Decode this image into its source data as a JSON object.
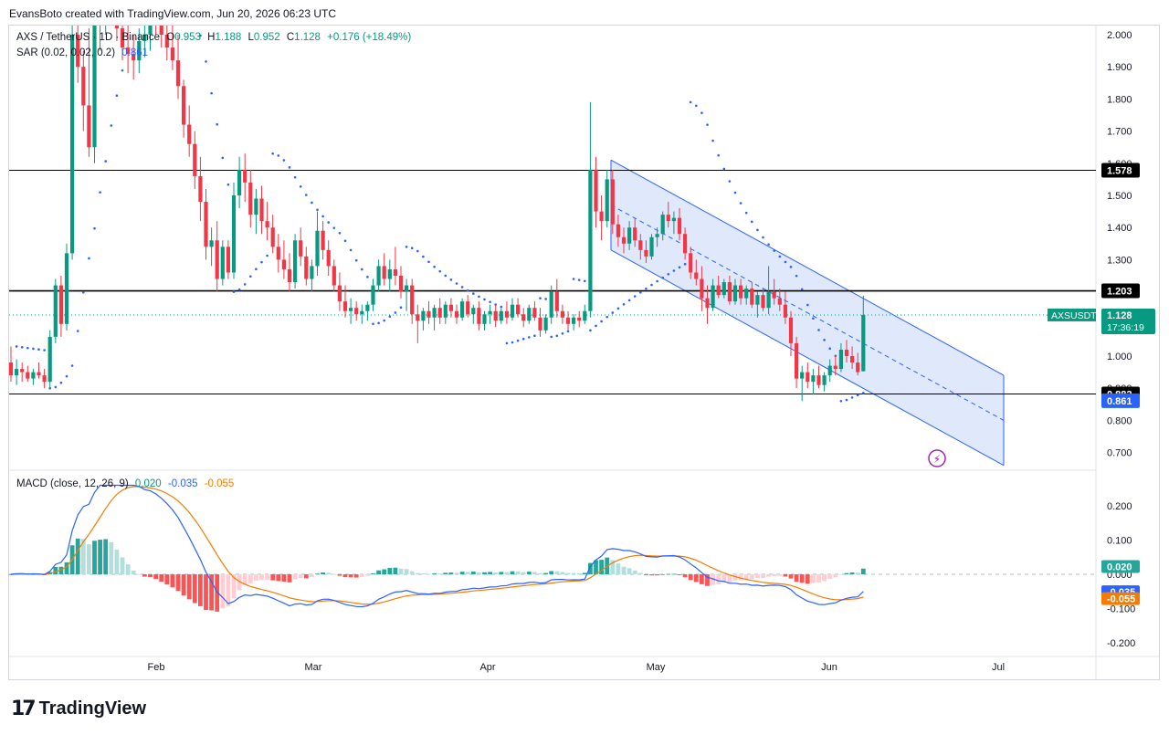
{
  "credit": "EvansBoto created with TradingView.com, Jun 20, 2026 06:23 UTC",
  "legend": {
    "symbol": "AXS / TetherUS · 1D · Binance",
    "open_label": "O",
    "open": "0.953",
    "high_label": "H",
    "high": "1.188",
    "low_label": "L",
    "low": "0.952",
    "close_label": "C",
    "close": "1.128",
    "change": "+0.176 (+18.49%)",
    "sar_label": "SAR (0.02, 0.02, 0.2)",
    "sar_value": "0.861",
    "macd_label": "MACD (close, 12, 26, 9)",
    "macd_hist": "0.020",
    "macd_line": "-0.035",
    "macd_signal": "-0.055"
  },
  "brand": {
    "name": "TradingView",
    "mark": "17"
  },
  "chart_data": {
    "type": "candlestick",
    "symbol": "AXSUSDT",
    "timeframe": "1D",
    "price_axis": {
      "ticks": [
        2.0,
        1.9,
        1.8,
        1.7,
        1.6,
        1.5,
        1.4,
        1.3,
        1.2,
        1.0,
        0.9,
        0.8,
        0.7
      ],
      "range": [
        0.62,
        2.04
      ]
    },
    "time_axis": {
      "labels": [
        "Feb",
        "Mar",
        "Apr",
        "May",
        "Jun",
        "Jul"
      ]
    },
    "current_price": {
      "label": "AXSUSDT",
      "value": "1.128",
      "countdown": "17:36:19"
    },
    "horizontal_levels": [
      {
        "value": 1.578,
        "label": "1.578"
      },
      {
        "value": 1.203,
        "label": "1.203"
      },
      {
        "value": 0.882,
        "label": "0.882"
      }
    ],
    "sar_current_label": "0.861",
    "channel": {
      "upper": [
        [
          "2026-04-24",
          1.61
        ],
        [
          "2026-06-30",
          0.94
        ]
      ],
      "mid": [
        [
          "2026-04-24",
          1.47
        ],
        [
          "2026-06-30",
          0.8
        ]
      ],
      "lower": [
        [
          "2026-04-24",
          1.33
        ],
        [
          "2026-06-30",
          0.66
        ]
      ]
    },
    "candles_ohlc": [
      [
        0.98,
        1.03,
        0.92,
        0.94
      ],
      [
        0.94,
        0.99,
        0.91,
        0.96
      ],
      [
        0.96,
        0.98,
        0.92,
        0.95
      ],
      [
        0.95,
        0.97,
        0.92,
        0.93
      ],
      [
        0.93,
        0.96,
        0.91,
        0.95
      ],
      [
        0.95,
        0.98,
        0.93,
        0.94
      ],
      [
        0.94,
        0.96,
        0.9,
        0.92
      ],
      [
        0.92,
        1.08,
        0.9,
        1.06
      ],
      [
        1.06,
        1.24,
        1.04,
        1.22
      ],
      [
        1.22,
        1.25,
        1.06,
        1.1
      ],
      [
        1.1,
        1.35,
        1.08,
        1.32
      ],
      [
        1.32,
        2.05,
        1.3,
        2.0
      ],
      [
        2.0,
        2.08,
        1.85,
        1.9
      ],
      [
        1.9,
        1.95,
        1.7,
        1.78
      ],
      [
        1.78,
        2.02,
        1.62,
        1.65
      ],
      [
        1.65,
        2.2,
        1.6,
        2.05
      ],
      [
        2.05,
        2.2,
        1.95,
        2.1
      ],
      [
        2.1,
        2.3,
        2.0,
        2.2
      ],
      [
        2.2,
        2.3,
        2.05,
        2.15
      ],
      [
        2.15,
        2.22,
        1.98,
        2.02
      ],
      [
        2.02,
        2.1,
        1.92,
        1.96
      ],
      [
        1.96,
        2.05,
        1.88,
        1.94
      ],
      [
        1.94,
        2.0,
        1.86,
        1.92
      ],
      [
        1.92,
        2.02,
        1.88,
        1.98
      ],
      [
        1.98,
        2.06,
        1.93,
        2.0
      ],
      [
        2.0,
        2.1,
        1.95,
        2.08
      ],
      [
        2.08,
        2.12,
        2.0,
        2.04
      ],
      [
        2.04,
        2.1,
        1.96,
        2.0
      ],
      [
        2.0,
        2.08,
        1.92,
        1.96
      ],
      [
        1.96,
        2.04,
        1.89,
        1.92
      ],
      [
        1.92,
        2.0,
        1.8,
        1.84
      ],
      [
        1.84,
        1.86,
        1.68,
        1.72
      ],
      [
        1.72,
        1.78,
        1.62,
        1.66
      ],
      [
        1.66,
        1.7,
        1.52,
        1.56
      ],
      [
        1.56,
        1.62,
        1.42,
        1.48
      ],
      [
        1.48,
        1.52,
        1.3,
        1.34
      ],
      [
        1.34,
        1.4,
        1.28,
        1.36
      ],
      [
        1.36,
        1.42,
        1.2,
        1.24
      ],
      [
        1.24,
        1.36,
        1.22,
        1.34
      ],
      [
        1.34,
        1.36,
        1.24,
        1.26
      ],
      [
        1.26,
        1.54,
        1.24,
        1.5
      ],
      [
        1.5,
        1.62,
        1.46,
        1.58
      ],
      [
        1.58,
        1.63,
        1.48,
        1.54
      ],
      [
        1.54,
        1.58,
        1.4,
        1.44
      ],
      [
        1.44,
        1.52,
        1.38,
        1.49
      ],
      [
        1.49,
        1.53,
        1.38,
        1.42
      ],
      [
        1.42,
        1.48,
        1.36,
        1.4
      ],
      [
        1.4,
        1.44,
        1.32,
        1.34
      ],
      [
        1.34,
        1.38,
        1.26,
        1.3
      ],
      [
        1.3,
        1.36,
        1.24,
        1.27
      ],
      [
        1.27,
        1.32,
        1.2,
        1.23
      ],
      [
        1.23,
        1.38,
        1.21,
        1.36
      ],
      [
        1.36,
        1.4,
        1.28,
        1.31
      ],
      [
        1.31,
        1.34,
        1.22,
        1.24
      ],
      [
        1.24,
        1.3,
        1.2,
        1.28
      ],
      [
        1.28,
        1.45,
        1.25,
        1.39
      ],
      [
        1.39,
        1.42,
        1.3,
        1.33
      ],
      [
        1.33,
        1.36,
        1.25,
        1.28
      ],
      [
        1.28,
        1.3,
        1.2,
        1.22
      ],
      [
        1.22,
        1.26,
        1.14,
        1.17
      ],
      [
        1.17,
        1.22,
        1.12,
        1.14
      ],
      [
        1.14,
        1.18,
        1.1,
        1.15
      ],
      [
        1.15,
        1.17,
        1.11,
        1.13
      ],
      [
        1.13,
        1.16,
        1.1,
        1.14
      ],
      [
        1.14,
        1.17,
        1.11,
        1.16
      ],
      [
        1.16,
        1.24,
        1.14,
        1.22
      ],
      [
        1.22,
        1.3,
        1.2,
        1.28
      ],
      [
        1.28,
        1.32,
        1.22,
        1.24
      ],
      [
        1.24,
        1.3,
        1.2,
        1.27
      ],
      [
        1.27,
        1.34,
        1.22,
        1.25
      ],
      [
        1.25,
        1.28,
        1.18,
        1.2
      ],
      [
        1.2,
        1.24,
        1.14,
        1.22
      ],
      [
        1.22,
        1.24,
        1.1,
        1.13
      ],
      [
        1.13,
        1.16,
        1.04,
        1.11
      ],
      [
        1.11,
        1.15,
        1.08,
        1.14
      ],
      [
        1.14,
        1.17,
        1.1,
        1.12
      ],
      [
        1.12,
        1.16,
        1.08,
        1.15
      ],
      [
        1.15,
        1.18,
        1.1,
        1.12
      ],
      [
        1.12,
        1.17,
        1.1,
        1.16
      ],
      [
        1.16,
        1.18,
        1.12,
        1.14
      ],
      [
        1.14,
        1.16,
        1.1,
        1.12
      ],
      [
        1.12,
        1.18,
        1.11,
        1.17
      ],
      [
        1.17,
        1.19,
        1.12,
        1.13
      ],
      [
        1.13,
        1.16,
        1.1,
        1.15
      ],
      [
        1.15,
        1.17,
        1.08,
        1.1
      ],
      [
        1.1,
        1.14,
        1.08,
        1.13
      ],
      [
        1.13,
        1.16,
        1.1,
        1.14
      ],
      [
        1.14,
        1.16,
        1.09,
        1.11
      ],
      [
        1.11,
        1.15,
        1.1,
        1.14
      ],
      [
        1.14,
        1.17,
        1.1,
        1.12
      ],
      [
        1.12,
        1.18,
        1.11,
        1.16
      ],
      [
        1.16,
        1.18,
        1.12,
        1.13
      ],
      [
        1.13,
        1.15,
        1.09,
        1.11
      ],
      [
        1.11,
        1.16,
        1.1,
        1.15
      ],
      [
        1.15,
        1.17,
        1.11,
        1.12
      ],
      [
        1.12,
        1.15,
        1.06,
        1.08
      ],
      [
        1.08,
        1.13,
        1.07,
        1.12
      ],
      [
        1.12,
        1.22,
        1.1,
        1.2
      ],
      [
        1.2,
        1.24,
        1.12,
        1.14
      ],
      [
        1.14,
        1.16,
        1.1,
        1.12
      ],
      [
        1.12,
        1.14,
        1.08,
        1.1
      ],
      [
        1.1,
        1.13,
        1.08,
        1.12
      ],
      [
        1.12,
        1.14,
        1.09,
        1.11
      ],
      [
        1.11,
        1.16,
        1.1,
        1.14
      ],
      [
        1.14,
        1.79,
        1.12,
        1.58
      ],
      [
        1.58,
        1.62,
        1.4,
        1.45
      ],
      [
        1.45,
        1.5,
        1.36,
        1.42
      ],
      [
        1.42,
        1.58,
        1.4,
        1.55
      ],
      [
        1.55,
        1.58,
        1.38,
        1.41
      ],
      [
        1.41,
        1.44,
        1.34,
        1.37
      ],
      [
        1.37,
        1.4,
        1.32,
        1.35
      ],
      [
        1.35,
        1.42,
        1.33,
        1.4
      ],
      [
        1.4,
        1.43,
        1.34,
        1.36
      ],
      [
        1.36,
        1.38,
        1.3,
        1.33
      ],
      [
        1.33,
        1.36,
        1.29,
        1.31
      ],
      [
        1.31,
        1.38,
        1.3,
        1.37
      ],
      [
        1.37,
        1.4,
        1.34,
        1.38
      ],
      [
        1.38,
        1.45,
        1.36,
        1.44
      ],
      [
        1.44,
        1.48,
        1.4,
        1.42
      ],
      [
        1.42,
        1.45,
        1.38,
        1.43
      ],
      [
        1.43,
        1.46,
        1.36,
        1.38
      ],
      [
        1.38,
        1.4,
        1.3,
        1.32
      ],
      [
        1.32,
        1.34,
        1.24,
        1.26
      ],
      [
        1.26,
        1.3,
        1.22,
        1.24
      ],
      [
        1.24,
        1.28,
        1.14,
        1.18
      ],
      [
        1.18,
        1.22,
        1.1,
        1.15
      ],
      [
        1.15,
        1.24,
        1.14,
        1.22
      ],
      [
        1.22,
        1.25,
        1.18,
        1.19
      ],
      [
        1.19,
        1.24,
        1.18,
        1.23
      ],
      [
        1.23,
        1.25,
        1.16,
        1.17
      ],
      [
        1.17,
        1.24,
        1.16,
        1.22
      ],
      [
        1.22,
        1.24,
        1.16,
        1.18
      ],
      [
        1.18,
        1.22,
        1.16,
        1.21
      ],
      [
        1.21,
        1.23,
        1.15,
        1.16
      ],
      [
        1.16,
        1.2,
        1.12,
        1.19
      ],
      [
        1.19,
        1.21,
        1.14,
        1.15
      ],
      [
        1.15,
        1.28,
        1.13,
        1.2
      ],
      [
        1.2,
        1.24,
        1.16,
        1.18
      ],
      [
        1.18,
        1.21,
        1.14,
        1.16
      ],
      [
        1.16,
        1.2,
        1.1,
        1.12
      ],
      [
        1.12,
        1.14,
        1.0,
        1.04
      ],
      [
        1.04,
        1.06,
        0.9,
        0.93
      ],
      [
        0.93,
        0.97,
        0.86,
        0.95
      ],
      [
        0.95,
        0.98,
        0.9,
        0.92
      ],
      [
        0.92,
        0.96,
        0.88,
        0.94
      ],
      [
        0.94,
        0.97,
        0.9,
        0.91
      ],
      [
        0.91,
        0.95,
        0.89,
        0.94
      ],
      [
        0.94,
        0.99,
        0.92,
        0.97
      ],
      [
        0.97,
        1.0,
        0.94,
        0.96
      ],
      [
        0.96,
        1.04,
        0.95,
        1.02
      ],
      [
        1.02,
        1.05,
        0.98,
        1.0
      ],
      [
        1.0,
        1.03,
        0.96,
        0.98
      ],
      [
        0.98,
        1.01,
        0.94,
        0.95
      ],
      [
        0.953,
        1.188,
        0.952,
        1.128
      ]
    ],
    "macd": {
      "ticks": [
        0.2,
        0.1,
        0.0,
        -0.1,
        -0.2
      ],
      "last": {
        "histogram": 0.02,
        "macd": -0.035,
        "signal": -0.055
      },
      "hist_label": "0.020",
      "macd_label": "-0.035",
      "signal_label": "-0.055"
    },
    "colors": {
      "up": "#089981",
      "down": "#f23645",
      "channel": "#2962ff",
      "channel_fill": "#d6e0fb",
      "sar": "#2962ff",
      "macd": "#2962ff",
      "signal": "#f57c00",
      "hist_up": "#26a69a",
      "hist_up_light": "#b2dfdb",
      "hist_down": "#ff5252",
      "hist_down_light": "#ffcdd2"
    }
  }
}
